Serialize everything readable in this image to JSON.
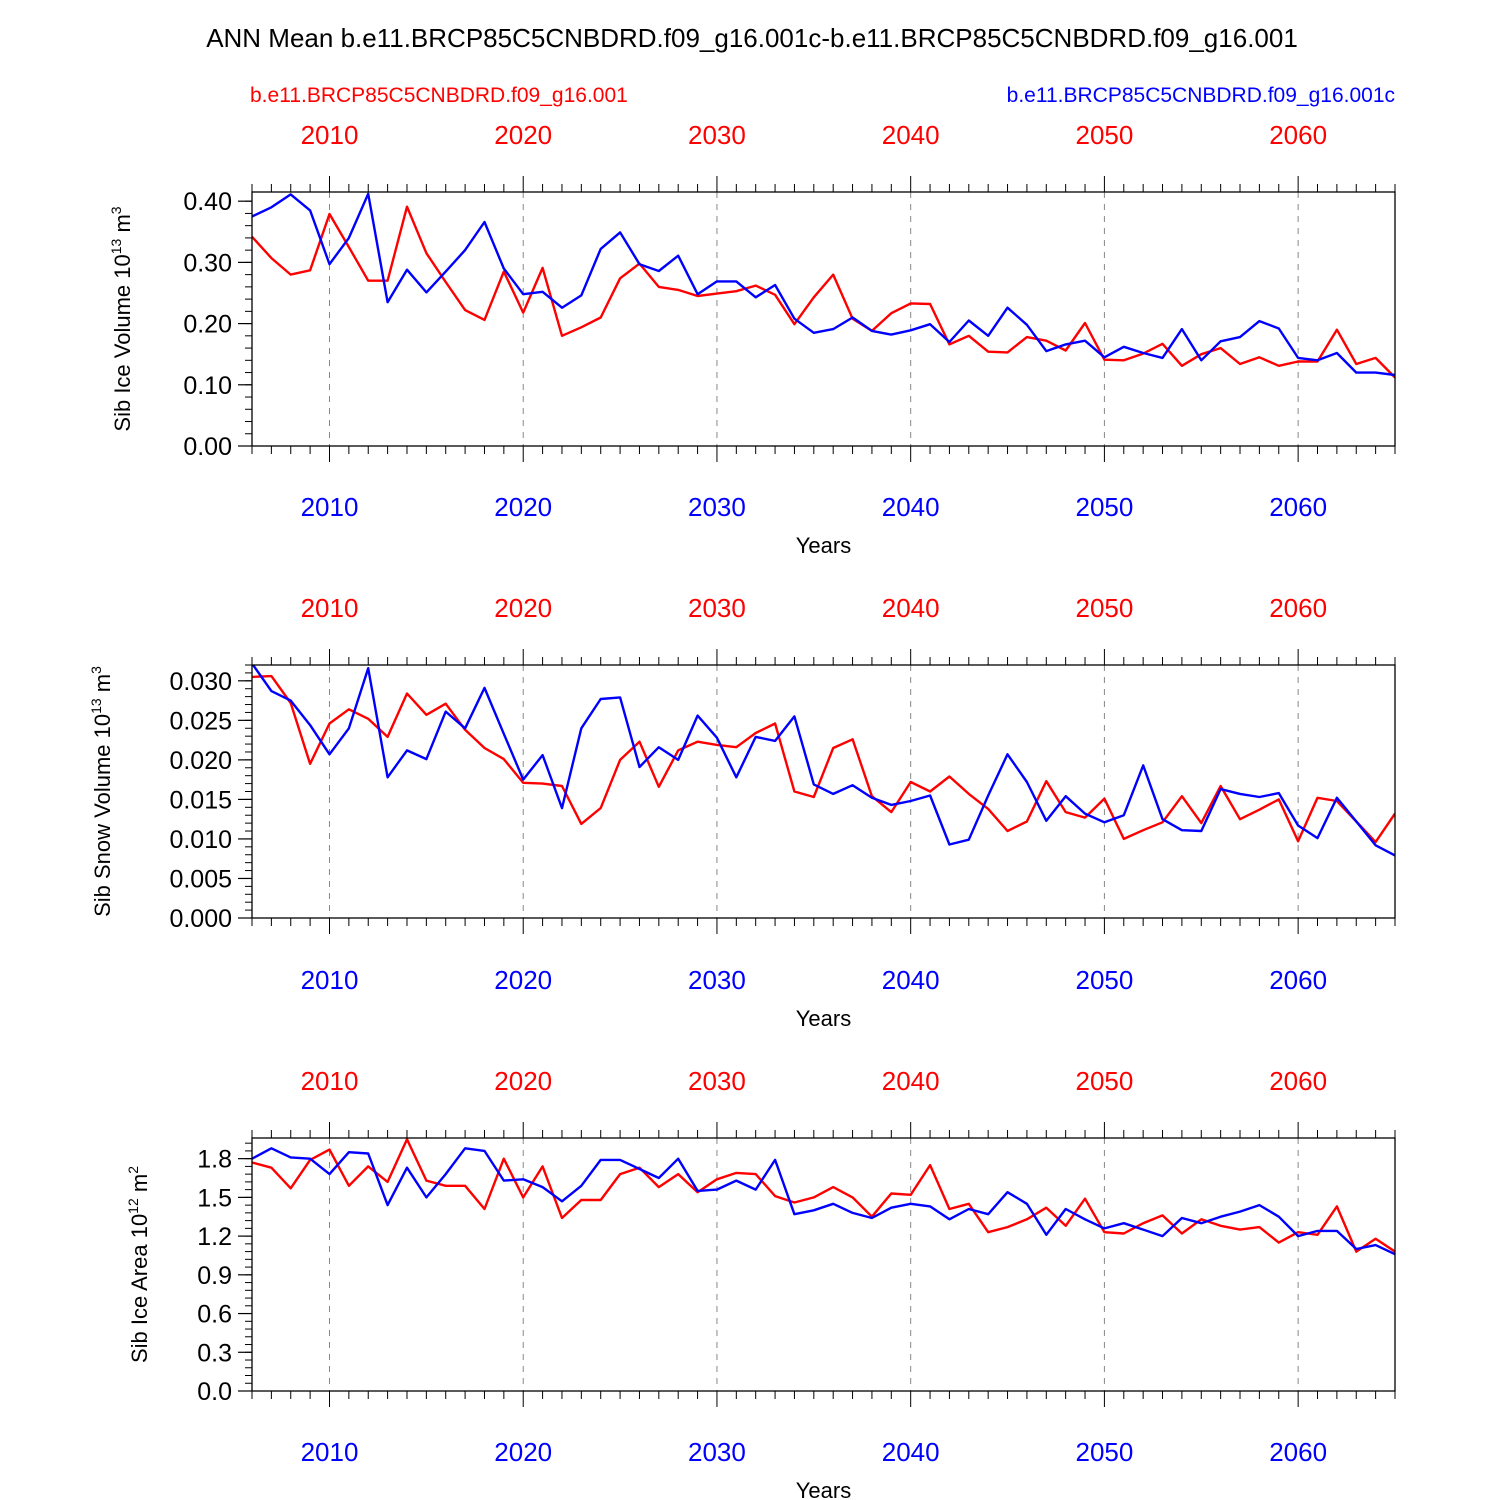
{
  "figure": {
    "title": "ANN Mean b.e11.BRCP85C5CNBDRD.f09_g16.001c-b.e11.BRCP85C5CNBDRD.f09_g16.001",
    "legend_red": "b.e11.BRCP85C5CNBDRD.f09_g16.001",
    "legend_blue": "b.e11.BRCP85C5CNBDRD.f09_g16.001c"
  },
  "colors": {
    "red": "#ff0000",
    "blue": "#0000ff",
    "axis": "#000000",
    "grid": "#888888"
  },
  "chart_data": [
    {
      "type": "line",
      "ylabel": "Sib Ice Volume 10",
      "ylabel_exp": "13",
      "ylabel_unit": " m",
      "ylabel_unit_exp": "3",
      "xlabel": "Years",
      "xlim": [
        2006,
        2065
      ],
      "ylim": [
        0,
        0.415
      ],
      "yticks": [
        0,
        0.1,
        0.2,
        0.3,
        0.4
      ],
      "yticklabels": [
        "0.00",
        "0.10",
        "0.20",
        "0.30",
        "0.40"
      ],
      "yminor_step": 0.02,
      "xticks": [
        2010,
        2020,
        2030,
        2040,
        2050,
        2060
      ],
      "xticklabels": [
        "2010",
        "2020",
        "2030",
        "2040",
        "2050",
        "2060"
      ],
      "x": [
        2006,
        2007,
        2008,
        2009,
        2010,
        2011,
        2012,
        2013,
        2014,
        2015,
        2016,
        2017,
        2018,
        2019,
        2020,
        2021,
        2022,
        2023,
        2024,
        2025,
        2026,
        2027,
        2028,
        2029,
        2030,
        2031,
        2032,
        2033,
        2034,
        2035,
        2036,
        2037,
        2038,
        2039,
        2040,
        2041,
        2042,
        2043,
        2044,
        2045,
        2046,
        2047,
        2048,
        2049,
        2050,
        2051,
        2052,
        2053,
        2054,
        2055,
        2056,
        2057,
        2058,
        2059,
        2060,
        2061,
        2062,
        2063,
        2064,
        2065
      ],
      "series": [
        {
          "name": "b.e11.BRCP85C5CNBDRD.f09_g16.001",
          "color": "red",
          "values": [
            0.342,
            0.307,
            0.28,
            0.287,
            0.379,
            0.325,
            0.27,
            0.27,
            0.391,
            0.315,
            0.268,
            0.222,
            0.206,
            0.285,
            0.218,
            0.291,
            0.18,
            0.194,
            0.21,
            0.274,
            0.298,
            0.26,
            0.255,
            0.245,
            0.249,
            0.253,
            0.262,
            0.247,
            0.199,
            0.243,
            0.28,
            0.208,
            0.188,
            0.217,
            0.233,
            0.232,
            0.166,
            0.18,
            0.154,
            0.153,
            0.178,
            0.172,
            0.156,
            0.201,
            0.141,
            0.14,
            0.151,
            0.167,
            0.131,
            0.15,
            0.16,
            0.134,
            0.145,
            0.131,
            0.138,
            0.138,
            0.19,
            0.134,
            0.144,
            0.112
          ]
        },
        {
          "name": "b.e11.BRCP85C5CNBDRD.f09_g16.001c",
          "color": "blue",
          "values": [
            0.375,
            0.39,
            0.411,
            0.385,
            0.297,
            0.34,
            0.412,
            0.235,
            0.288,
            0.251,
            0.285,
            0.32,
            0.366,
            0.29,
            0.248,
            0.252,
            0.226,
            0.246,
            0.322,
            0.349,
            0.297,
            0.286,
            0.311,
            0.248,
            0.269,
            0.269,
            0.243,
            0.263,
            0.208,
            0.185,
            0.191,
            0.21,
            0.188,
            0.182,
            0.189,
            0.199,
            0.17,
            0.205,
            0.18,
            0.226,
            0.198,
            0.155,
            0.166,
            0.172,
            0.145,
            0.162,
            0.152,
            0.144,
            0.191,
            0.14,
            0.171,
            0.178,
            0.204,
            0.192,
            0.144,
            0.14,
            0.152,
            0.12,
            0.12,
            0.116
          ]
        }
      ]
    },
    {
      "type": "line",
      "ylabel": "Sib Snow Volume 10",
      "ylabel_exp": "13",
      "ylabel_unit": " m",
      "ylabel_unit_exp": "3",
      "xlabel": "Years",
      "xlim": [
        2006,
        2065
      ],
      "ylim": [
        0,
        0.032
      ],
      "yticks": [
        0,
        0.005,
        0.01,
        0.015,
        0.02,
        0.025,
        0.03
      ],
      "yticklabels": [
        "0.000",
        "0.005",
        "0.010",
        "0.015",
        "0.020",
        "0.025",
        "0.030"
      ],
      "yminor_step": 0.001,
      "xticks": [
        2010,
        2020,
        2030,
        2040,
        2050,
        2060
      ],
      "xticklabels": [
        "2010",
        "2020",
        "2030",
        "2040",
        "2050",
        "2060"
      ],
      "x": [
        2006,
        2007,
        2008,
        2009,
        2010,
        2011,
        2012,
        2013,
        2014,
        2015,
        2016,
        2017,
        2018,
        2019,
        2020,
        2021,
        2022,
        2023,
        2024,
        2025,
        2026,
        2027,
        2028,
        2029,
        2030,
        2031,
        2032,
        2033,
        2034,
        2035,
        2036,
        2037,
        2038,
        2039,
        2040,
        2041,
        2042,
        2043,
        2044,
        2045,
        2046,
        2047,
        2048,
        2049,
        2050,
        2051,
        2052,
        2053,
        2054,
        2055,
        2056,
        2057,
        2058,
        2059,
        2060,
        2061,
        2062,
        2063,
        2064,
        2065
      ],
      "series": [
        {
          "name": "b.e11.BRCP85C5CNBDRD.f09_g16.001",
          "color": "red",
          "values": [
            0.0305,
            0.0306,
            0.0272,
            0.0195,
            0.0246,
            0.0264,
            0.0252,
            0.0229,
            0.0284,
            0.0257,
            0.0271,
            0.0238,
            0.0215,
            0.0201,
            0.0171,
            0.017,
            0.0167,
            0.0119,
            0.0139,
            0.02,
            0.0223,
            0.0166,
            0.0212,
            0.0223,
            0.0219,
            0.0216,
            0.0234,
            0.0246,
            0.016,
            0.0153,
            0.0215,
            0.0226,
            0.0154,
            0.0134,
            0.0172,
            0.016,
            0.0179,
            0.0157,
            0.0138,
            0.011,
            0.0122,
            0.0173,
            0.0134,
            0.0127,
            0.0151,
            0.01,
            0.0111,
            0.0121,
            0.0154,
            0.012,
            0.0167,
            0.0125,
            0.0137,
            0.015,
            0.0097,
            0.0152,
            0.0148,
            0.0122,
            0.0096,
            0.0132
          ]
        },
        {
          "name": "b.e11.BRCP85C5CNBDRD.f09_g16.001c",
          "color": "blue",
          "values": [
            0.0322,
            0.0287,
            0.0275,
            0.0244,
            0.0207,
            0.024,
            0.0316,
            0.0178,
            0.0212,
            0.0201,
            0.0261,
            0.024,
            0.0291,
            0.0233,
            0.0175,
            0.0206,
            0.0139,
            0.024,
            0.0277,
            0.0279,
            0.0191,
            0.0216,
            0.02,
            0.0256,
            0.0228,
            0.0178,
            0.0229,
            0.0224,
            0.0255,
            0.0169,
            0.0157,
            0.0168,
            0.0152,
            0.0143,
            0.0148,
            0.0155,
            0.0093,
            0.0099,
            0.0155,
            0.0207,
            0.0172,
            0.0123,
            0.0154,
            0.0132,
            0.0121,
            0.013,
            0.0193,
            0.0125,
            0.0111,
            0.011,
            0.0163,
            0.0157,
            0.0153,
            0.0158,
            0.0117,
            0.0101,
            0.0152,
            0.0122,
            0.0092,
            0.0079
          ]
        }
      ]
    },
    {
      "type": "line",
      "ylabel": "Sib Ice Area 10",
      "ylabel_exp": "12",
      "ylabel_unit": " m",
      "ylabel_unit_exp": "2",
      "xlabel": "Years",
      "xlim": [
        2006,
        2065
      ],
      "ylim": [
        0,
        1.96
      ],
      "yticks": [
        0,
        0.3,
        0.6,
        0.9,
        1.2,
        1.5,
        1.8
      ],
      "yticklabels": [
        "0.0",
        "0.3",
        "0.6",
        "0.9",
        "1.2",
        "1.5",
        "1.8"
      ],
      "yminor_step": 0.06,
      "xticks": [
        2010,
        2020,
        2030,
        2040,
        2050,
        2060
      ],
      "xticklabels": [
        "2010",
        "2020",
        "2030",
        "2040",
        "2050",
        "2060"
      ],
      "x": [
        2006,
        2007,
        2008,
        2009,
        2010,
        2011,
        2012,
        2013,
        2014,
        2015,
        2016,
        2017,
        2018,
        2019,
        2020,
        2021,
        2022,
        2023,
        2024,
        2025,
        2026,
        2027,
        2028,
        2029,
        2030,
        2031,
        2032,
        2033,
        2034,
        2035,
        2036,
        2037,
        2038,
        2039,
        2040,
        2041,
        2042,
        2043,
        2044,
        2045,
        2046,
        2047,
        2048,
        2049,
        2050,
        2051,
        2052,
        2053,
        2054,
        2055,
        2056,
        2057,
        2058,
        2059,
        2060,
        2061,
        2062,
        2063,
        2064,
        2065
      ],
      "series": [
        {
          "name": "b.e11.BRCP85C5CNBDRD.f09_g16.001",
          "color": "red",
          "values": [
            1.77,
            1.73,
            1.57,
            1.79,
            1.87,
            1.59,
            1.74,
            1.62,
            1.95,
            1.63,
            1.59,
            1.59,
            1.41,
            1.8,
            1.5,
            1.74,
            1.34,
            1.48,
            1.48,
            1.68,
            1.73,
            1.58,
            1.68,
            1.54,
            1.64,
            1.69,
            1.68,
            1.51,
            1.46,
            1.5,
            1.58,
            1.5,
            1.35,
            1.53,
            1.52,
            1.75,
            1.41,
            1.45,
            1.23,
            1.27,
            1.33,
            1.42,
            1.28,
            1.49,
            1.23,
            1.22,
            1.3,
            1.36,
            1.22,
            1.33,
            1.28,
            1.25,
            1.27,
            1.15,
            1.23,
            1.21,
            1.43,
            1.08,
            1.18,
            1.08
          ]
        },
        {
          "name": "b.e11.BRCP85C5CNBDRD.f09_g16.001c",
          "color": "blue",
          "values": [
            1.8,
            1.88,
            1.81,
            1.8,
            1.68,
            1.85,
            1.84,
            1.44,
            1.73,
            1.5,
            1.68,
            1.88,
            1.86,
            1.63,
            1.64,
            1.58,
            1.47,
            1.59,
            1.79,
            1.79,
            1.72,
            1.65,
            1.8,
            1.55,
            1.56,
            1.63,
            1.56,
            1.79,
            1.37,
            1.4,
            1.45,
            1.38,
            1.34,
            1.42,
            1.45,
            1.43,
            1.33,
            1.41,
            1.37,
            1.54,
            1.45,
            1.21,
            1.41,
            1.33,
            1.26,
            1.3,
            1.25,
            1.2,
            1.34,
            1.3,
            1.35,
            1.39,
            1.44,
            1.35,
            1.2,
            1.24,
            1.24,
            1.1,
            1.13,
            1.06
          ]
        }
      ]
    }
  ]
}
